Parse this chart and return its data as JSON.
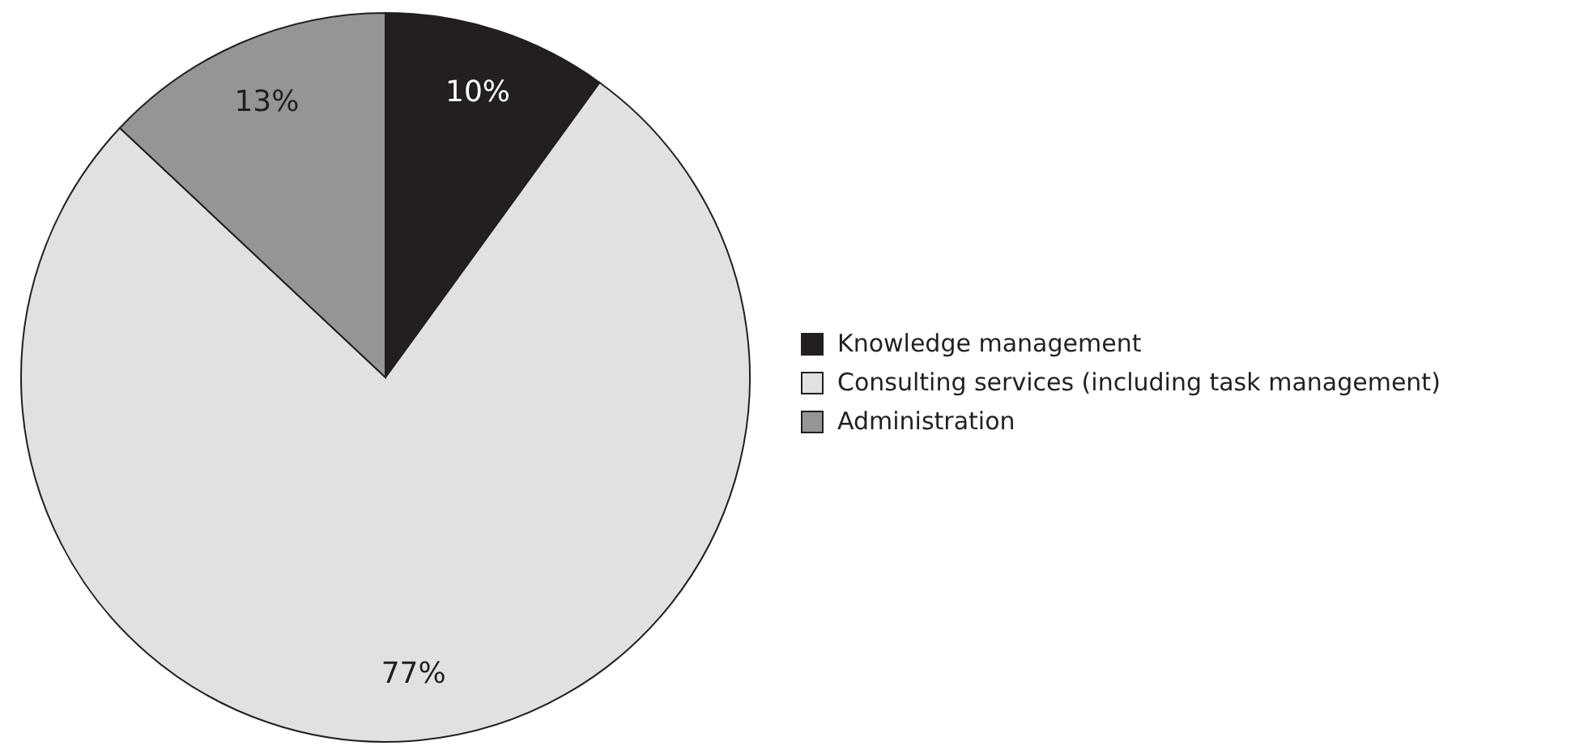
{
  "chart_data": {
    "type": "pie",
    "categories": [
      "Knowledge management",
      "Consulting services (including task management)",
      "Administration"
    ],
    "values": [
      10,
      77,
      13
    ],
    "colors": [
      "#231f20",
      "#e1e1e2",
      "#959597"
    ],
    "value_labels": [
      "10%",
      "77%",
      "13%"
    ],
    "legend": "right"
  }
}
